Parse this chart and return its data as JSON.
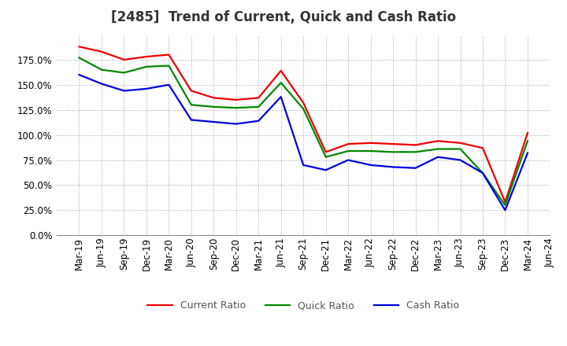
{
  "title": "[2485]  Trend of Current, Quick and Cash Ratio",
  "labels": [
    "Mar-19",
    "Jun-19",
    "Sep-19",
    "Dec-19",
    "Mar-20",
    "Jun-20",
    "Sep-20",
    "Dec-20",
    "Mar-21",
    "Jun-21",
    "Sep-21",
    "Dec-21",
    "Mar-22",
    "Jun-22",
    "Sep-22",
    "Dec-22",
    "Mar-23",
    "Jun-23",
    "Sep-23",
    "Dec-23",
    "Mar-24",
    "Jun-24"
  ],
  "current_ratio": [
    188,
    183,
    175,
    178,
    180,
    144,
    137,
    135,
    137,
    164,
    132,
    83,
    91,
    92,
    91,
    90,
    94,
    92,
    87,
    33,
    102,
    null
  ],
  "quick_ratio": [
    177,
    165,
    162,
    168,
    169,
    130,
    128,
    127,
    128,
    152,
    126,
    78,
    84,
    84,
    83,
    83,
    86,
    86,
    62,
    30,
    94,
    null
  ],
  "cash_ratio": [
    160,
    151,
    144,
    146,
    150,
    115,
    113,
    111,
    114,
    138,
    70,
    65,
    75,
    70,
    68,
    67,
    78,
    75,
    62,
    25,
    82,
    null
  ],
  "current_color": "#ee0000",
  "quick_color": "#008800",
  "cash_color": "#0000dd",
  "ylim": [
    0,
    200
  ],
  "yticks": [
    0,
    25,
    50,
    75,
    100,
    125,
    150,
    175
  ],
  "background_color": "#ffffff",
  "plot_bg_color": "#ffffff",
  "grid_color": "#999999",
  "line_width": 1.6,
  "title_color": "#333333",
  "title_fontsize": 12,
  "tick_fontsize": 8.5,
  "legend_fontsize": 9
}
